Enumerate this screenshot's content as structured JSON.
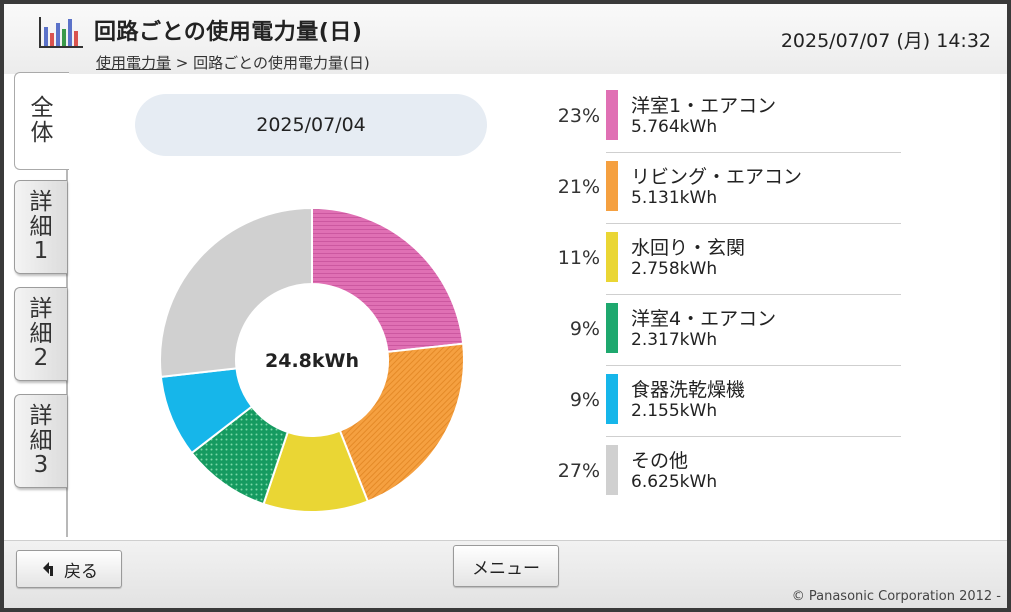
{
  "header": {
    "title": "回路ごとの使用電力量(日)",
    "breadcrumb_link": "使用電力量",
    "breadcrumb_sep": ">",
    "breadcrumb_current": "回路ごとの使用電力量(日)",
    "datetime": "2025/07/07 (月) 14:32"
  },
  "tabs": [
    {
      "lines": [
        "全",
        "体"
      ],
      "active": true
    },
    {
      "lines": [
        "詳",
        "細",
        "1"
      ],
      "active": false
    },
    {
      "lines": [
        "詳",
        "細",
        "2"
      ],
      "active": false
    },
    {
      "lines": [
        "詳",
        "細",
        "3"
      ],
      "active": false
    }
  ],
  "date_selector": "2025/07/04",
  "chart_data": {
    "type": "pie",
    "center_label": "24.8kWh",
    "series": [
      {
        "name": "洋室1・エアコン",
        "percent": "23%",
        "kwh": "5.764kWh",
        "value": 5.764,
        "color": "#e070b4",
        "pattern": "stripes"
      },
      {
        "name": "リビング・エアコン",
        "percent": "21%",
        "kwh": "5.131kWh",
        "value": 5.131,
        "color": "#f5a040",
        "pattern": "stripes"
      },
      {
        "name": "水回り・玄関",
        "percent": "11%",
        "kwh": "2.758kWh",
        "value": 2.758,
        "color": "#ead634",
        "pattern": "solid"
      },
      {
        "name": "洋室4・エアコン",
        "percent": "9%",
        "kwh": "2.317kWh",
        "value": 2.317,
        "color": "#1ea86e",
        "pattern": "dots"
      },
      {
        "name": "食器洗乾燥機",
        "percent": "9%",
        "kwh": "2.155kWh",
        "value": 2.155,
        "color": "#16b6ea",
        "pattern": "solid"
      },
      {
        "name": "その他",
        "percent": "27%",
        "kwh": "6.625kWh",
        "value": 6.625,
        "color": "#d0d0d0",
        "pattern": "solid"
      }
    ]
  },
  "footer": {
    "back_label": "戻る",
    "menu_label": "メニュー",
    "copyright": "© Panasonic Corporation 2012 -"
  },
  "icons": {
    "back": "back-arrow-icon",
    "app": "bar-chart-icon"
  }
}
